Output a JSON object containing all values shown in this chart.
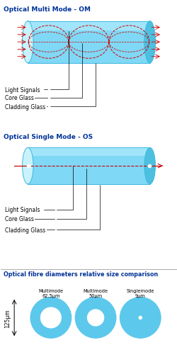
{
  "title_mm": "Optical Multi Mode - OM",
  "title_sm": "Optical Single Mode - OS",
  "title_comp": "Optical fibre diameters relative size comparison",
  "label_light": "Light Signals",
  "label_core": "Core Glass",
  "label_clad": "Cladding Glass",
  "cyl_body": "#7fd8f5",
  "cyl_dark": "#3ab8e0",
  "cyl_light_end": "#c8f2fc",
  "cyl_right_end": "#4dc0e0",
  "signal_color": "#cc0000",
  "bg_color": "#ffffff",
  "title_color": "#003399",
  "label_color": "#000000",
  "comp_title_color": "#003399",
  "fibre_blue": "#5cc8ec",
  "multimode1_label": "Multimode\n62.5μm",
  "multimode2_label": "Multimode\n50μm",
  "singlemode_label": "Singlemode\n9μm",
  "size_label": "125μm",
  "sep_color": "#888888"
}
